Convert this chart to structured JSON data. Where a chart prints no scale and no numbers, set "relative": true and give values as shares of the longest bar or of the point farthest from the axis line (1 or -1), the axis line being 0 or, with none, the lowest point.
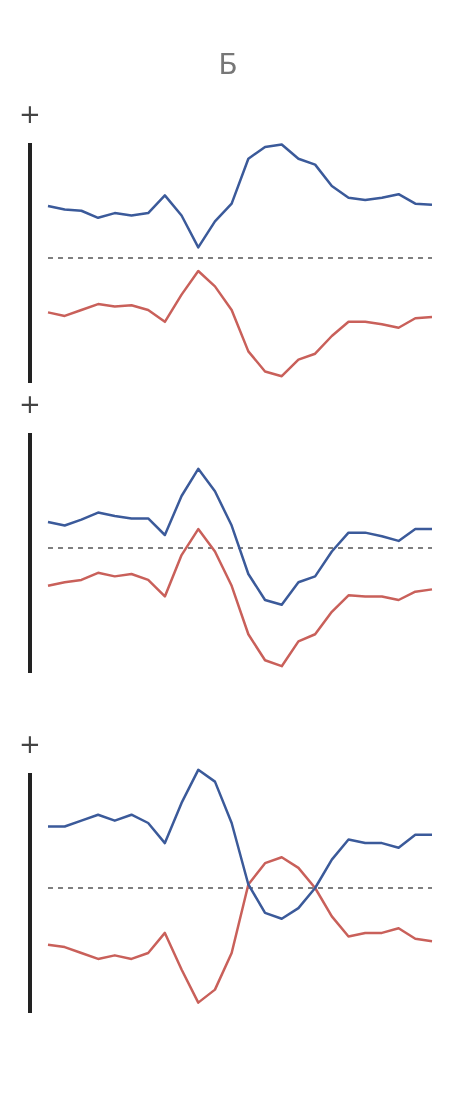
{
  "chart_data": [
    {
      "type": "line",
      "title": "Б",
      "relative": true,
      "categories": [
        null,
        null,
        null,
        null,
        null,
        null,
        null,
        null,
        null,
        null,
        null,
        null,
        null,
        null,
        null,
        null,
        null,
        null,
        null,
        null,
        null,
        null,
        null,
        null
      ],
      "marker": "none",
      "series": [
        {
          "color": "#3b5a9a",
          "values": [
            0.44,
            0.41,
            0.4,
            0.34,
            0.38,
            0.36,
            0.38,
            0.53,
            0.36,
            0.09,
            0.31,
            0.46,
            0.84,
            0.94,
            0.96,
            0.84,
            0.79,
            0.61,
            0.51,
            0.49,
            0.51,
            0.54,
            0.46,
            0.45
          ]
        },
        {
          "color": "#c9605a",
          "values": [
            -0.46,
            -0.49,
            -0.44,
            -0.39,
            -0.41,
            -0.4,
            -0.44,
            -0.54,
            -0.31,
            -0.11,
            -0.24,
            -0.44,
            -0.79,
            -0.96,
            -1,
            -0.86,
            -0.81,
            -0.66,
            -0.54,
            -0.54,
            -0.56,
            -0.59,
            -0.51,
            -0.5
          ]
        }
      ],
      "ref_lines": [
        {
          "axis": "y",
          "value": 0,
          "line_style": "dashed",
          "color": "#555555"
        }
      ],
      "annotations": [
        "+"
      ]
    },
    {
      "type": "line",
      "relative": true,
      "categories": [
        null,
        null,
        null,
        null,
        null,
        null,
        null,
        null,
        null,
        null,
        null,
        null,
        null,
        null,
        null,
        null,
        null,
        null,
        null,
        null,
        null,
        null,
        null,
        null
      ],
      "marker": "none",
      "series": [
        {
          "color": "#3b5a9a",
          "values": [
            0.22,
            0.19,
            0.24,
            0.3,
            0.27,
            0.25,
            0.25,
            0.11,
            0.44,
            0.67,
            0.48,
            0.19,
            -0.22,
            -0.44,
            -0.48,
            -0.29,
            -0.24,
            -0.03,
            0.13,
            0.13,
            0.1,
            0.06,
            0.16,
            0.16
          ]
        },
        {
          "color": "#c9605a",
          "values": [
            -0.32,
            -0.29,
            -0.27,
            -0.21,
            -0.24,
            -0.22,
            -0.27,
            -0.41,
            -0.06,
            0.16,
            -0.03,
            -0.32,
            -0.73,
            -0.95,
            -1,
            -0.79,
            -0.73,
            -0.54,
            -0.4,
            -0.41,
            -0.41,
            -0.44,
            -0.37,
            -0.35
          ]
        }
      ],
      "ref_lines": [
        {
          "axis": "y",
          "value": 0,
          "line_style": "dashed",
          "color": "#555555"
        }
      ],
      "annotations": [
        "+"
      ]
    },
    {
      "type": "line",
      "relative": true,
      "categories": [
        null,
        null,
        null,
        null,
        null,
        null,
        null,
        null,
        null,
        null,
        null,
        null,
        null,
        null,
        null,
        null,
        null,
        null,
        null,
        null,
        null,
        null,
        null,
        null
      ],
      "marker": "none",
      "series": [
        {
          "color": "#3b5a9a",
          "values": [
            0.52,
            0.52,
            0.57,
            0.62,
            0.57,
            0.62,
            0.55,
            0.38,
            0.72,
            1,
            0.9,
            0.55,
            0.03,
            -0.21,
            -0.26,
            -0.17,
            0,
            0.24,
            0.41,
            0.38,
            0.38,
            0.34,
            0.45,
            0.45
          ]
        },
        {
          "color": "#c9605a",
          "values": [
            -0.48,
            -0.5,
            -0.55,
            -0.6,
            -0.57,
            -0.6,
            -0.55,
            -0.38,
            -0.69,
            -0.97,
            -0.86,
            -0.55,
            0.03,
            0.21,
            0.26,
            0.17,
            0,
            -0.24,
            -0.41,
            -0.38,
            -0.38,
            -0.34,
            -0.43,
            -0.45
          ]
        }
      ],
      "ref_lines": [
        {
          "axis": "y",
          "value": 0,
          "line_style": "dashed",
          "color": "#555555"
        }
      ],
      "annotations": [
        "+"
      ]
    }
  ]
}
